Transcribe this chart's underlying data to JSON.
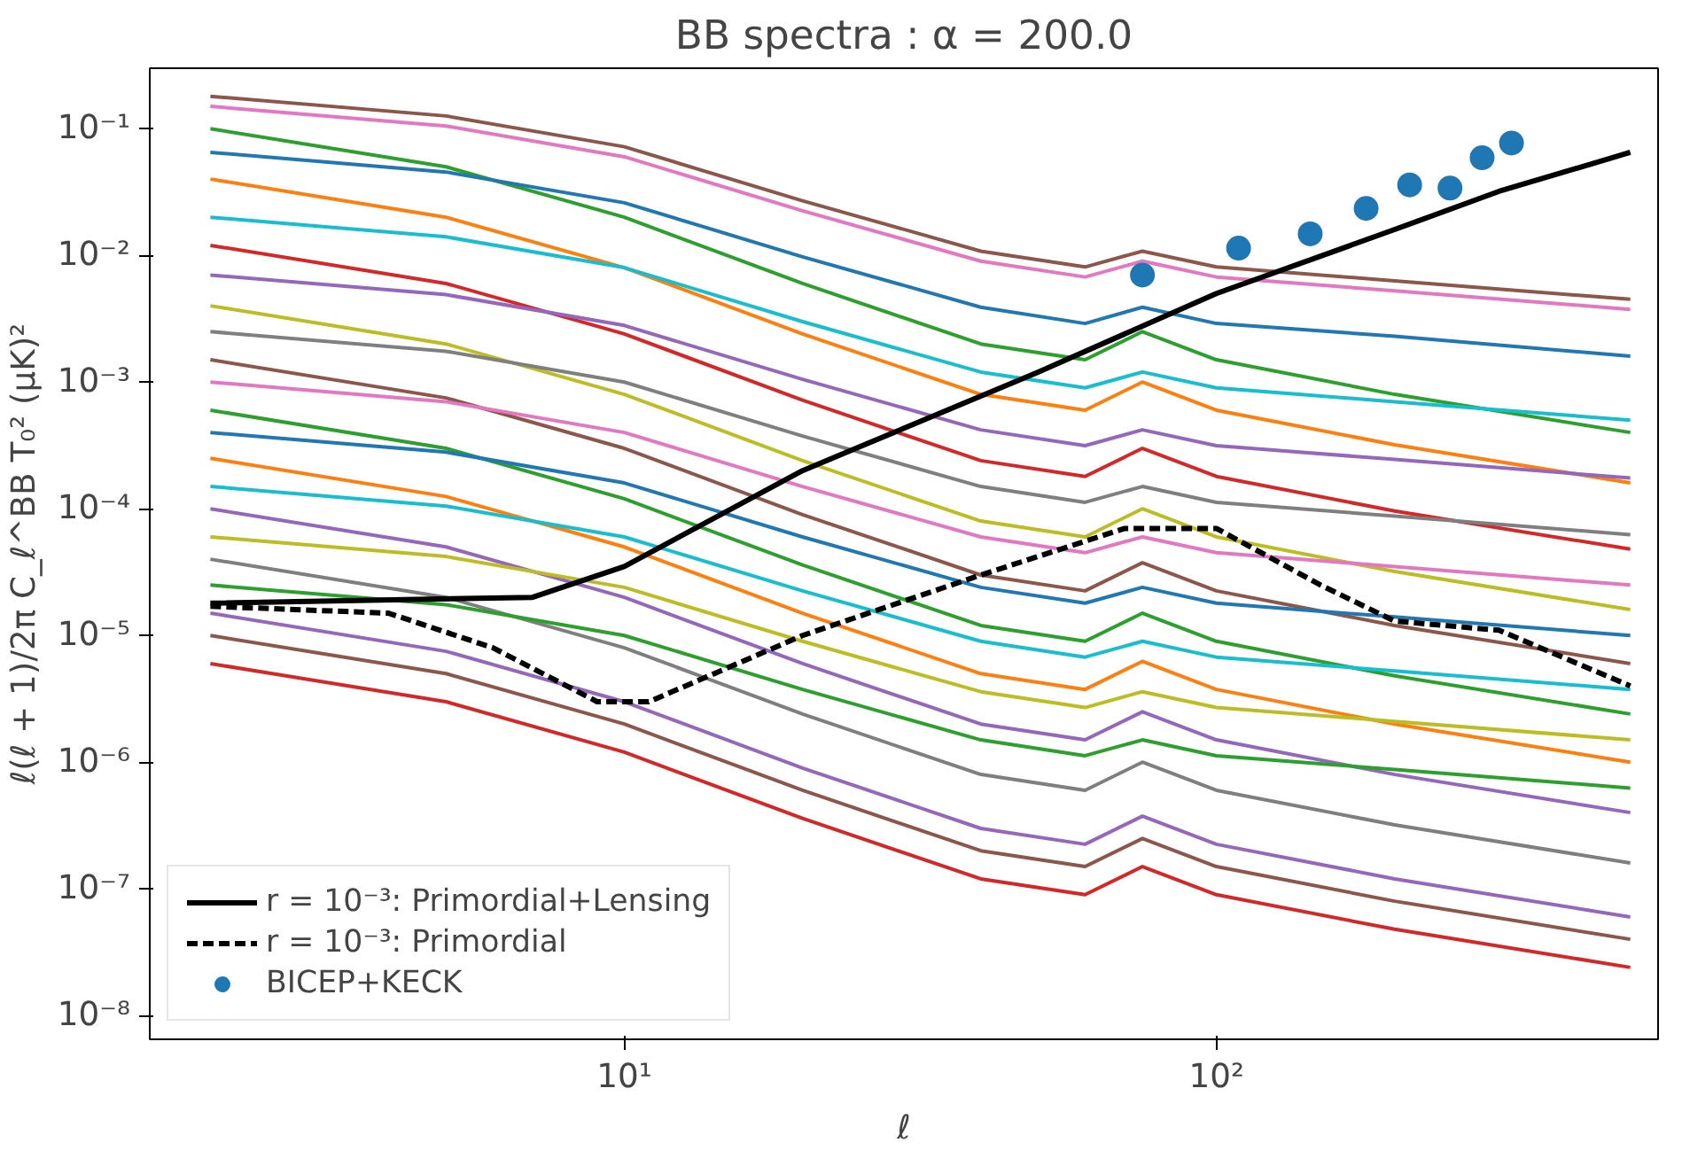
{
  "chart_data": {
    "type": "line",
    "title": "BB spectra : α = 200.0",
    "xlabel": "ℓ",
    "ylabel": "ℓ(ℓ + 1)/2π C_ℓ^BB T₀² (μK)²",
    "log": "xy",
    "grid": false,
    "legend": "bottom left",
    "xlim": [
      1.58,
      557
    ],
    "ylim": [
      6.5e-09,
      0.3
    ],
    "xticks": [
      {
        "value": 10,
        "label": "10¹"
      },
      {
        "value": 100,
        "label": "10²"
      }
    ],
    "yticks": [
      {
        "value": 1e-08,
        "label": "10⁻⁸"
      },
      {
        "value": 1e-07,
        "label": "10⁻⁷"
      },
      {
        "value": 1e-06,
        "label": "10⁻⁶"
      },
      {
        "value": 1e-05,
        "label": "10⁻⁵"
      },
      {
        "value": 0.0001,
        "label": "10⁻⁴"
      },
      {
        "value": 0.001,
        "label": "10⁻³"
      },
      {
        "value": 0.01,
        "label": "10⁻²"
      },
      {
        "value": 0.1,
        "label": "10⁻¹"
      }
    ],
    "x": [
      2,
      5,
      10,
      20,
      40,
      60,
      75,
      100,
      200,
      500
    ],
    "series": [
      {
        "color": "#8c564b",
        "values": [
          0.18,
          0.126,
          0.072,
          0.027,
          0.0108,
          0.0081,
          0.0108,
          0.0081,
          0.0063,
          0.0045
        ]
      },
      {
        "color": "#e377c2",
        "values": [
          0.15,
          0.105,
          0.06,
          0.0225,
          0.009,
          0.00675,
          0.009,
          0.00675,
          0.00525,
          0.00375
        ]
      },
      {
        "color": "#2ca02c",
        "values": [
          0.1,
          0.05,
          0.02,
          0.006,
          0.002,
          0.0015,
          0.0025,
          0.0015,
          0.0008,
          0.0004
        ]
      },
      {
        "color": "#1f77b4",
        "values": [
          0.065,
          0.0455,
          0.026,
          0.00975,
          0.0039,
          0.0029,
          0.0039,
          0.0029,
          0.0023,
          0.0016
        ]
      },
      {
        "color": "#ff7f0e",
        "values": [
          0.04,
          0.02,
          0.008,
          0.0024,
          0.0008,
          0.0006,
          0.001,
          0.0006,
          0.00032,
          0.00016
        ]
      },
      {
        "color": "#17becf",
        "values": [
          0.02,
          0.014,
          0.008,
          0.003,
          0.0012,
          0.0009,
          0.0012,
          0.0009,
          0.0007,
          0.0005
        ]
      },
      {
        "color": "#d62728",
        "values": [
          0.012,
          0.006,
          0.0024,
          0.00072,
          0.00024,
          0.00018,
          0.0003,
          0.00018,
          9.6e-05,
          4.8e-05
        ]
      },
      {
        "color": "#9467bd",
        "values": [
          0.007,
          0.0049,
          0.0028,
          0.00105,
          0.00042,
          0.000315,
          0.00042,
          0.000315,
          0.000245,
          0.000175
        ]
      },
      {
        "color": "#bcbd22",
        "values": [
          0.004,
          0.002,
          0.0008,
          0.00024,
          8e-05,
          6e-05,
          0.0001,
          6e-05,
          3.2e-05,
          1.6e-05
        ]
      },
      {
        "color": "#7f7f7f",
        "values": [
          0.0025,
          0.00175,
          0.001,
          0.000375,
          0.00015,
          0.0001125,
          0.00015,
          0.0001125,
          8.75e-05,
          6.25e-05
        ]
      },
      {
        "color": "#8c564b",
        "values": [
          0.0015,
          0.00075,
          0.0003,
          9e-05,
          3e-05,
          2.25e-05,
          3.75e-05,
          2.25e-05,
          1.2e-05,
          6e-06
        ]
      },
      {
        "color": "#e377c2",
        "values": [
          0.001,
          0.0007,
          0.0004,
          0.00015,
          6e-05,
          4.5e-05,
          6e-05,
          4.5e-05,
          3.5e-05,
          2.5e-05
        ]
      },
      {
        "color": "#2ca02c",
        "values": [
          0.0006,
          0.0003,
          0.00012,
          3.6e-05,
          1.2e-05,
          9e-06,
          1.5e-05,
          9e-06,
          4.8e-06,
          2.4e-06
        ]
      },
      {
        "color": "#1f77b4",
        "values": [
          0.0004,
          0.00028,
          0.00016,
          6e-05,
          2.4e-05,
          1.8e-05,
          2.4e-05,
          1.8e-05,
          1.4e-05,
          1e-05
        ]
      },
      {
        "color": "#ff7f0e",
        "values": [
          0.00025,
          0.000125,
          5e-05,
          1.5e-05,
          5e-06,
          3.75e-06,
          6.25e-06,
          3.75e-06,
          2e-06,
          1e-06
        ]
      },
      {
        "color": "#17becf",
        "values": [
          0.00015,
          0.000105,
          6e-05,
          2.25e-05,
          9e-06,
          6.75e-06,
          9e-06,
          6.75e-06,
          5.25e-06,
          3.75e-06
        ]
      },
      {
        "color": "#9467bd",
        "values": [
          0.0001,
          5e-05,
          2e-05,
          6e-06,
          2e-06,
          1.5e-06,
          2.5e-06,
          1.5e-06,
          8e-07,
          4e-07
        ]
      },
      {
        "color": "#bcbd22",
        "values": [
          6e-05,
          4.2e-05,
          2.4e-05,
          9e-06,
          3.6e-06,
          2.7e-06,
          3.6e-06,
          2.7e-06,
          2.1e-06,
          1.5e-06
        ]
      },
      {
        "color": "#7f7f7f",
        "values": [
          4e-05,
          2e-05,
          8e-06,
          2.4e-06,
          8e-07,
          6e-07,
          1e-06,
          6e-07,
          3.2e-07,
          1.6e-07
        ]
      },
      {
        "color": "#2ca02c",
        "values": [
          2.5e-05,
          1.75e-05,
          1e-05,
          3.75e-06,
          1.5e-06,
          1.125e-06,
          1.5e-06,
          1.125e-06,
          8.75e-07,
          6.25e-07
        ]
      },
      {
        "color": "#9467bd",
        "values": [
          1.5e-05,
          7.5e-06,
          3e-06,
          9e-07,
          3e-07,
          2.25e-07,
          3.75e-07,
          2.25e-07,
          1.2e-07,
          6e-08
        ]
      },
      {
        "color": "#8c564b",
        "values": [
          1e-05,
          5e-06,
          2e-06,
          6e-07,
          2e-07,
          1.5e-07,
          2.5e-07,
          1.5e-07,
          8e-08,
          4e-08
        ]
      },
      {
        "color": "#d62728",
        "values": [
          6e-06,
          3e-06,
          1.2e-06,
          3.6e-07,
          1.2e-07,
          9e-08,
          1.5e-07,
          9e-08,
          4.8e-08,
          2.4e-08
        ]
      },
      {
        "name": "r = 10⁻³: Primordial+Lensing",
        "color": "#000000",
        "line_style": "solid",
        "x": [
          2,
          7,
          10,
          20,
          50,
          100,
          200,
          300,
          500
        ],
        "values": [
          1.8e-05,
          2e-05,
          3.5e-05,
          0.0002,
          0.0012,
          0.005,
          0.016,
          0.032,
          0.065
        ]
      },
      {
        "name": "r = 10⁻³: Primordial",
        "color": "#000000",
        "line_style": "dashed",
        "x": [
          2,
          4,
          6,
          9,
          11,
          20,
          40,
          70,
          100,
          150,
          200,
          300,
          500
        ],
        "values": [
          1.7e-05,
          1.5e-05,
          8e-06,
          3e-06,
          3e-06,
          1e-05,
          3e-05,
          7e-05,
          7e-05,
          2.5e-05,
          1.3e-05,
          1.1e-05,
          4e-06
        ]
      },
      {
        "name": "BICEP+KECK",
        "type": "scatter",
        "marker": "circle",
        "color": "#1f77b4",
        "x": [
          75,
          109,
          144,
          179,
          212,
          248,
          281,
          315
        ],
        "values": [
          0.007,
          0.0114,
          0.0148,
          0.0235,
          0.036,
          0.034,
          0.059,
          0.077
        ]
      }
    ]
  }
}
